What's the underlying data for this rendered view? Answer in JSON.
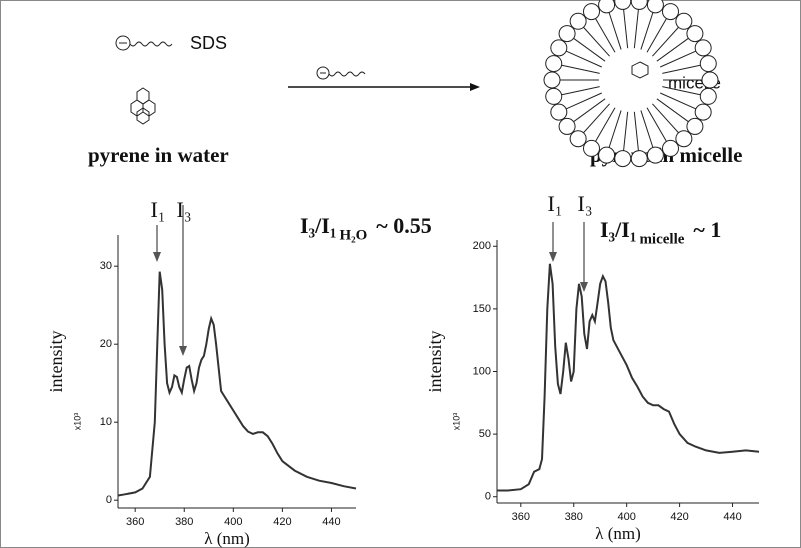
{
  "scheme": {
    "surfactant": "SDS",
    "micelle": "micelle",
    "left_caption": "pyrene in water",
    "right_caption": "pyrene in micelle"
  },
  "chart_data": [
    {
      "type": "line",
      "y_label": "intensity",
      "y_unit": "x10³",
      "x_label": "λ (nm)",
      "peak_labels": [
        "I₁",
        "I₃"
      ],
      "ratio": "I₃/I₁",
      "ratio_sub": "H₂O",
      "ratio_value": "~ 0.55",
      "color": "#333333",
      "xlim": [
        353,
        450
      ],
      "ylim": [
        -1,
        34
      ],
      "xticks": [
        360,
        380,
        400,
        420,
        440
      ],
      "yticks": [
        0,
        10,
        20,
        30
      ],
      "x": [
        353,
        355,
        360,
        363,
        366,
        368,
        369,
        370,
        371,
        372,
        373,
        374,
        375,
        376,
        377,
        378,
        379,
        380,
        381,
        382,
        383,
        384,
        385,
        386,
        387,
        388,
        389,
        390,
        391,
        392,
        393,
        394,
        395,
        396,
        398,
        400,
        402,
        404,
        406,
        408,
        410,
        412,
        414,
        416,
        418,
        420,
        425,
        430,
        435,
        440,
        445,
        450
      ],
      "values": [
        0.6,
        0.7,
        1.0,
        1.5,
        3,
        10,
        20,
        29.3,
        27,
        20,
        15,
        13.8,
        14.5,
        16,
        15.8,
        14.5,
        13.8,
        15.5,
        17,
        17.2,
        15.5,
        14,
        15,
        17,
        18,
        18.5,
        20,
        22,
        23.3,
        22.5,
        20,
        17,
        14,
        13.5,
        12.5,
        11.5,
        10.5,
        9.5,
        8.8,
        8.5,
        8.7,
        8.7,
        8.2,
        7.2,
        6,
        5,
        3.8,
        3,
        2.5,
        2.2,
        1.8,
        1.5
      ]
    },
    {
      "type": "line",
      "y_label": "intensity",
      "y_unit": "x10³",
      "x_label": "λ (nm)",
      "peak_labels": [
        "I₁",
        "I₃"
      ],
      "ratio": "I₃/I₁",
      "ratio_sub": "micelle",
      "ratio_value": "~ 1",
      "color": "#333333",
      "xlim": [
        351,
        450
      ],
      "ylim": [
        -5,
        205
      ],
      "xticks": [
        360,
        380,
        400,
        420,
        440
      ],
      "yticks": [
        0,
        50,
        100,
        150,
        200
      ],
      "x": [
        351,
        355,
        360,
        363,
        365,
        367,
        368,
        369,
        370,
        371,
        372,
        373,
        374,
        375,
        376,
        377,
        378,
        379,
        380,
        381,
        382,
        383,
        384,
        385,
        386,
        387,
        388,
        389,
        390,
        391,
        392,
        393,
        394,
        395,
        397,
        400,
        402,
        404,
        406,
        408,
        410,
        412,
        414,
        416,
        418,
        420,
        423,
        426,
        430,
        435,
        440,
        445,
        450
      ],
      "values": [
        5,
        5,
        6,
        10,
        20,
        22,
        30,
        80,
        150,
        186,
        170,
        120,
        90,
        82,
        100,
        123,
        110,
        92,
        100,
        150,
        170,
        160,
        130,
        118,
        140,
        145,
        140,
        155,
        170,
        176,
        172,
        155,
        135,
        125,
        117,
        105,
        95,
        88,
        80,
        75,
        73,
        73,
        70,
        68,
        58,
        50,
        43,
        40,
        37,
        35,
        36,
        37,
        36
      ]
    }
  ]
}
